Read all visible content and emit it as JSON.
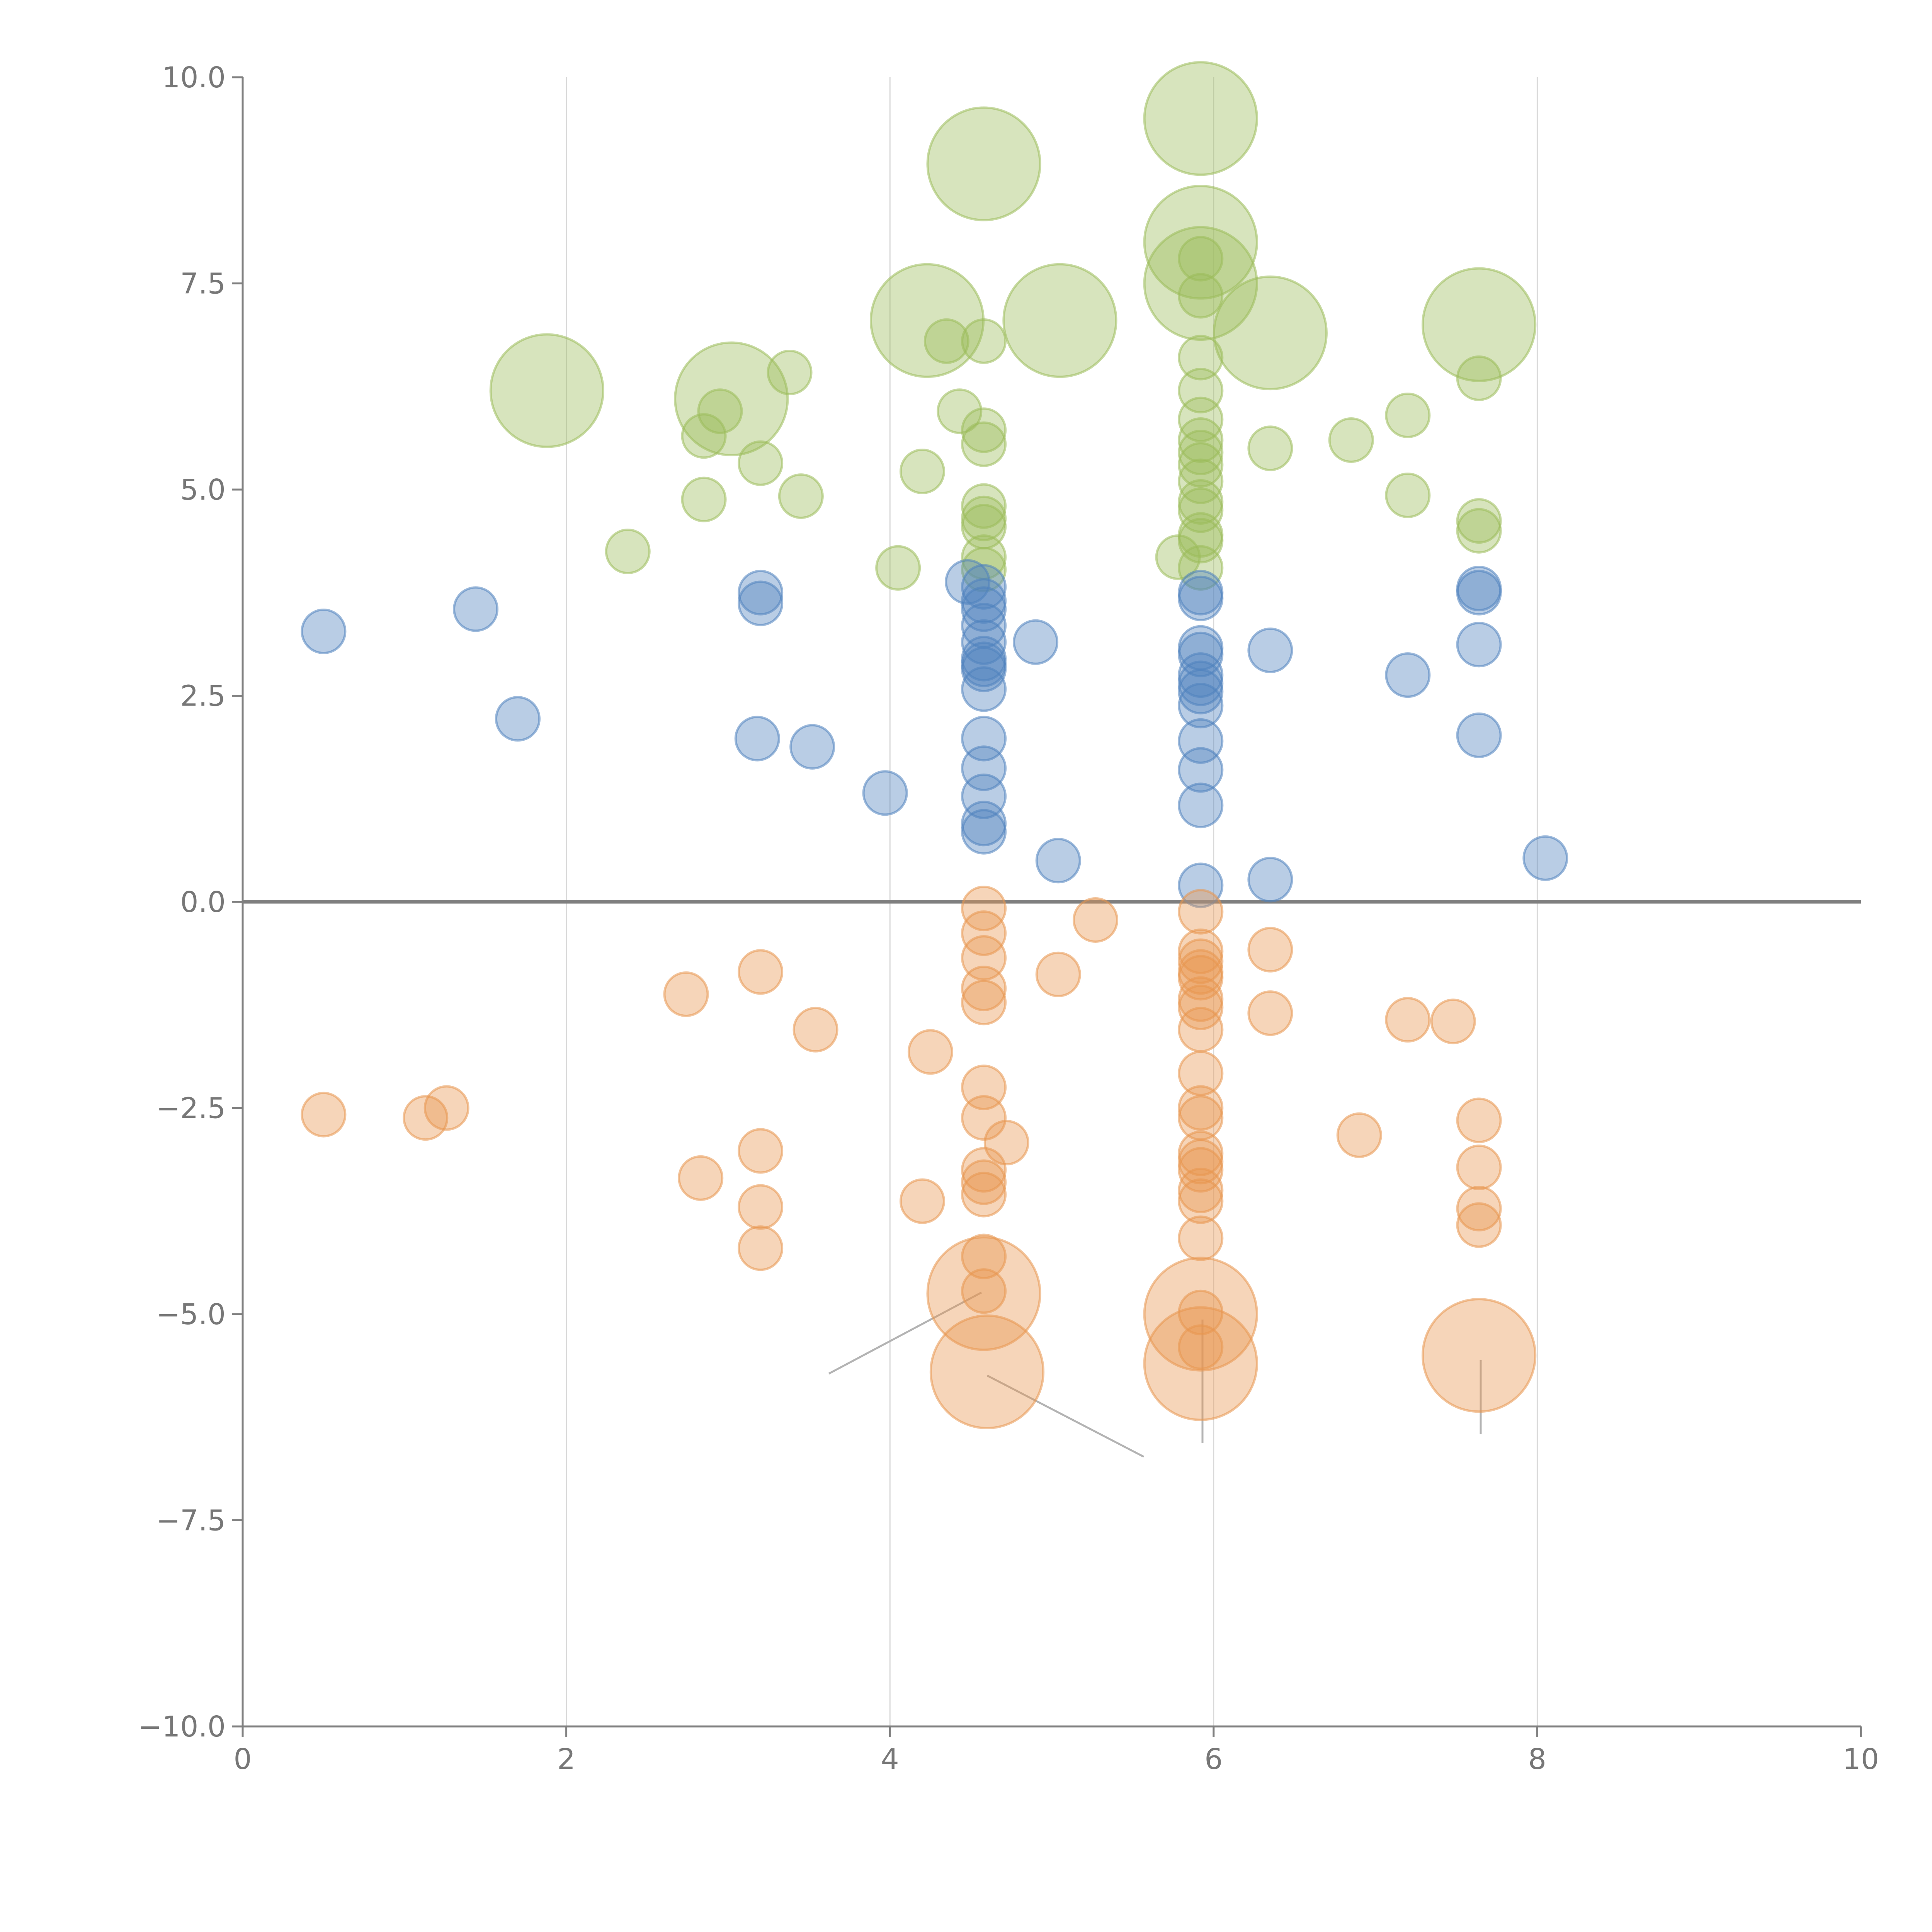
{
  "chart_data": {
    "type": "scatter",
    "title": "",
    "xlabel": "",
    "ylabel": "",
    "xlim": [
      0,
      10
    ],
    "ylim": [
      -10,
      10
    ],
    "x_ticks": [
      0,
      2,
      4,
      6,
      8,
      10
    ],
    "x_tick_labels": [
      "0",
      "2",
      "4",
      "6",
      "8",
      "10"
    ],
    "y_ticks": [
      10,
      7.5,
      5,
      2.5,
      0,
      -2.5,
      -5,
      -7.5,
      -10
    ],
    "y_tick_labels": [
      "10.0",
      "7.5",
      "5.0",
      "2.5",
      "0.0",
      "−2.5",
      "−5.0",
      "−7.5",
      "−10.0"
    ],
    "vertical_gridlines_at": [
      2,
      4,
      6,
      8
    ],
    "reference_line_y": 0,
    "size_scale": "bubble radius in relative units (small = 1)",
    "series": [
      {
        "name": "green",
        "color": "#9bbb59",
        "points": [
          [
            5.92,
            9.5,
            2.6
          ],
          [
            4.58,
            8.95,
            2.6
          ],
          [
            5.92,
            8.0,
            2.6
          ],
          [
            5.92,
            7.5,
            2.6
          ],
          [
            4.23,
            7.05,
            2.6
          ],
          [
            5.05,
            7.05,
            2.6
          ],
          [
            7.64,
            7.0,
            2.6
          ],
          [
            6.35,
            6.9,
            2.6
          ],
          [
            1.88,
            6.2,
            2.6
          ],
          [
            3.02,
            6.1,
            2.6
          ],
          [
            5.92,
            7.8,
            1
          ],
          [
            5.92,
            7.35,
            1
          ],
          [
            4.35,
            6.8,
            1
          ],
          [
            4.58,
            6.8,
            1
          ],
          [
            5.92,
            6.6,
            1
          ],
          [
            3.38,
            6.42,
            1
          ],
          [
            7.64,
            6.35,
            1
          ],
          [
            5.92,
            6.2,
            1
          ],
          [
            2.95,
            5.95,
            1
          ],
          [
            4.43,
            5.95,
            1
          ],
          [
            7.2,
            5.9,
            1
          ],
          [
            5.92,
            5.85,
            1
          ],
          [
            4.58,
            5.72,
            1
          ],
          [
            2.85,
            5.65,
            1
          ],
          [
            6.85,
            5.6,
            1
          ],
          [
            4.58,
            5.55,
            1
          ],
          [
            5.92,
            5.6,
            1
          ],
          [
            5.92,
            5.45,
            1
          ],
          [
            6.35,
            5.5,
            1
          ],
          [
            5.92,
            5.3,
            1
          ],
          [
            3.2,
            5.32,
            1
          ],
          [
            4.2,
            5.22,
            1
          ],
          [
            5.92,
            5.1,
            1
          ],
          [
            2.85,
            4.88,
            1
          ],
          [
            3.45,
            4.92,
            1
          ],
          [
            7.2,
            4.93,
            1
          ],
          [
            5.92,
            4.85,
            1
          ],
          [
            4.58,
            4.8,
            1
          ],
          [
            5.92,
            4.75,
            1
          ],
          [
            4.58,
            4.65,
            1
          ],
          [
            7.64,
            4.62,
            1
          ],
          [
            4.58,
            4.55,
            1
          ],
          [
            7.64,
            4.5,
            1
          ],
          [
            5.92,
            4.45,
            1
          ],
          [
            5.92,
            4.38,
            1
          ],
          [
            2.38,
            4.25,
            1
          ],
          [
            4.58,
            4.18,
            1
          ],
          [
            5.78,
            4.18,
            1
          ],
          [
            4.05,
            4.05,
            1
          ],
          [
            5.92,
            4.05,
            1
          ],
          [
            4.58,
            4.03,
            1
          ]
        ]
      },
      {
        "name": "blue",
        "color": "#4f81bd",
        "points": [
          [
            4.48,
            3.88,
            1
          ],
          [
            4.58,
            3.82,
            1
          ],
          [
            3.2,
            3.75,
            1
          ],
          [
            5.92,
            3.75,
            1
          ],
          [
            7.64,
            3.8,
            1
          ],
          [
            5.92,
            3.68,
            1
          ],
          [
            7.64,
            3.75,
            1
          ],
          [
            4.58,
            3.65,
            1
          ],
          [
            3.2,
            3.62,
            1
          ],
          [
            4.58,
            3.55,
            1
          ],
          [
            1.44,
            3.55,
            1
          ],
          [
            4.58,
            3.35,
            1
          ],
          [
            0.5,
            3.28,
            1
          ],
          [
            4.58,
            3.15,
            1
          ],
          [
            4.9,
            3.15,
            1
          ],
          [
            7.64,
            3.12,
            1
          ],
          [
            5.92,
            3.08,
            1
          ],
          [
            6.35,
            3.05,
            1
          ],
          [
            5.92,
            3.0,
            1
          ],
          [
            4.58,
            2.95,
            1
          ],
          [
            4.58,
            2.88,
            1
          ],
          [
            4.58,
            2.82,
            1
          ],
          [
            7.2,
            2.75,
            1
          ],
          [
            5.92,
            2.75,
            1
          ],
          [
            5.92,
            2.65,
            1
          ],
          [
            5.92,
            2.55,
            1
          ],
          [
            4.58,
            2.58,
            1
          ],
          [
            5.92,
            2.38,
            1
          ],
          [
            1.7,
            2.22,
            1
          ],
          [
            7.64,
            2.02,
            1
          ],
          [
            3.18,
            1.98,
            1
          ],
          [
            4.58,
            1.98,
            1
          ],
          [
            5.92,
            1.95,
            1
          ],
          [
            3.52,
            1.88,
            1
          ],
          [
            4.58,
            1.62,
            1
          ],
          [
            5.92,
            1.6,
            1
          ],
          [
            3.97,
            1.32,
            1
          ],
          [
            4.58,
            1.28,
            1
          ],
          [
            5.92,
            1.17,
            1
          ],
          [
            4.58,
            0.95,
            1
          ],
          [
            4.58,
            0.85,
            1
          ],
          [
            5.04,
            0.5,
            1
          ],
          [
            8.05,
            0.53,
            1
          ],
          [
            6.35,
            0.27,
            1
          ],
          [
            5.92,
            0.2,
            1
          ]
        ]
      },
      {
        "name": "orange",
        "color": "#e8954f",
        "points": [
          [
            4.58,
            -0.08,
            1
          ],
          [
            5.92,
            -0.12,
            1
          ],
          [
            5.27,
            -0.22,
            1
          ],
          [
            4.58,
            -0.38,
            1
          ],
          [
            6.35,
            -0.58,
            1
          ],
          [
            5.92,
            -0.6,
            1
          ],
          [
            4.58,
            -0.68,
            1
          ],
          [
            5.92,
            -0.72,
            1
          ],
          [
            3.2,
            -0.85,
            1
          ],
          [
            5.92,
            -0.85,
            1
          ],
          [
            5.04,
            -0.88,
            1
          ],
          [
            5.92,
            -0.92,
            1
          ],
          [
            4.58,
            -1.05,
            1
          ],
          [
            2.74,
            -1.12,
            1
          ],
          [
            5.92,
            -1.18,
            1
          ],
          [
            4.58,
            -1.22,
            1
          ],
          [
            5.92,
            -1.28,
            1
          ],
          [
            6.35,
            -1.35,
            1
          ],
          [
            7.2,
            -1.43,
            1
          ],
          [
            7.48,
            -1.45,
            1
          ],
          [
            3.54,
            -1.55,
            1
          ],
          [
            5.92,
            -1.55,
            1
          ],
          [
            4.25,
            -1.82,
            1
          ],
          [
            5.92,
            -2.08,
            1
          ],
          [
            4.58,
            -2.25,
            1
          ],
          [
            1.26,
            -2.5,
            1
          ],
          [
            5.92,
            -2.5,
            1
          ],
          [
            0.5,
            -2.58,
            1
          ],
          [
            1.13,
            -2.62,
            1
          ],
          [
            4.58,
            -2.62,
            1
          ],
          [
            5.92,
            -2.62,
            1
          ],
          [
            7.64,
            -2.65,
            1
          ],
          [
            6.9,
            -2.83,
            1
          ],
          [
            4.72,
            -2.92,
            1
          ],
          [
            3.2,
            -3.02,
            1
          ],
          [
            5.92,
            -3.05,
            1
          ],
          [
            5.92,
            -3.15,
            1
          ],
          [
            5.92,
            -3.25,
            1
          ],
          [
            4.58,
            -3.25,
            1
          ],
          [
            7.64,
            -3.22,
            1
          ],
          [
            2.83,
            -3.35,
            1
          ],
          [
            4.58,
            -3.4,
            1
          ],
          [
            5.92,
            -3.5,
            1
          ],
          [
            4.58,
            -3.55,
            1
          ],
          [
            4.2,
            -3.63,
            1
          ],
          [
            5.92,
            -3.63,
            1
          ],
          [
            3.2,
            -3.7,
            1
          ],
          [
            7.64,
            -3.72,
            1
          ],
          [
            7.64,
            -3.92,
            1
          ],
          [
            5.92,
            -4.08,
            1
          ],
          [
            3.2,
            -4.2,
            1
          ],
          [
            4.58,
            -4.3,
            1
          ],
          [
            4.58,
            -4.75,
            2.6
          ],
          [
            4.58,
            -4.72,
            1
          ],
          [
            5.92,
            -4.98,
            1
          ],
          [
            5.92,
            -5.0,
            2.6
          ],
          [
            5.92,
            -5.4,
            1
          ],
          [
            7.64,
            -5.5,
            2.6
          ],
          [
            5.92,
            -5.6,
            2.6
          ],
          [
            4.6,
            -5.7,
            2.6
          ]
        ]
      }
    ]
  }
}
